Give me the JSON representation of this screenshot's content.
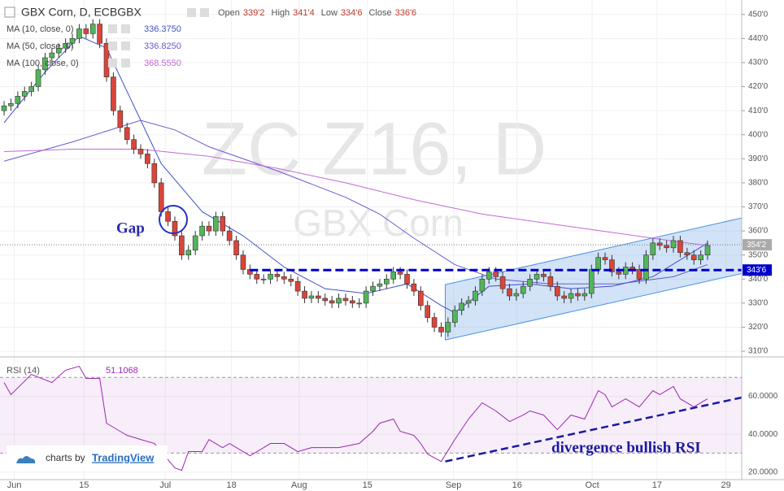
{
  "chart_data": {
    "type": "candlestick",
    "title": "GBX Corn, D, ECBGBX",
    "header": [
      {
        "label": "Open",
        "value": "339'2"
      },
      {
        "label": "High",
        "value": "341'4"
      },
      {
        "label": "Low",
        "value": "334'6"
      },
      {
        "label": "Close",
        "value": "336'6"
      }
    ],
    "watermark": [
      "ZC Z16, D",
      "GBX Corn"
    ],
    "up_color": "#53b55a",
    "down_color": "#d9453b",
    "xlim": [
      -0.6,
      108
    ],
    "ylim": [
      308,
      456
    ],
    "yticks": [
      {
        "value": 310,
        "label": "310'0"
      },
      {
        "value": 320,
        "label": "320'0"
      },
      {
        "value": 330,
        "label": "330'0"
      },
      {
        "value": 340,
        "label": "340'0"
      },
      {
        "value": 350,
        "label": "350'0"
      },
      {
        "value": 360,
        "label": "360'0"
      },
      {
        "value": 370,
        "label": "370'0"
      },
      {
        "value": 380,
        "label": "380'0"
      },
      {
        "value": 390,
        "label": "390'0"
      },
      {
        "value": 400,
        "label": "400'0"
      },
      {
        "value": 410,
        "label": "410'0"
      },
      {
        "value": 420,
        "label": "420'0"
      },
      {
        "value": 430,
        "label": "430'0"
      },
      {
        "value": 440,
        "label": "440'0"
      },
      {
        "value": 450,
        "label": "450'0"
      }
    ],
    "xticks": [
      {
        "value": 1.5,
        "label": "Jun"
      },
      {
        "value": 11.7,
        "label": "15"
      },
      {
        "value": 23.6,
        "label": "Jul"
      },
      {
        "value": 33.3,
        "label": "18"
      },
      {
        "value": 43.2,
        "label": "Aug"
      },
      {
        "value": 53.2,
        "label": "15"
      },
      {
        "value": 65.8,
        "label": "Sep"
      },
      {
        "value": 75.1,
        "label": "16"
      },
      {
        "value": 86.1,
        "label": "Oct"
      },
      {
        "value": 95.6,
        "label": "17"
      },
      {
        "value": 105.7,
        "label": "29"
      }
    ],
    "ohlc": [
      [
        410,
        414,
        408,
        412
      ],
      [
        412,
        415,
        410,
        413
      ],
      [
        413,
        418,
        411,
        416
      ],
      [
        416,
        420,
        414,
        418
      ],
      [
        418,
        422,
        416,
        420
      ],
      [
        420,
        429,
        418,
        427
      ],
      [
        427,
        434,
        425,
        432
      ],
      [
        432,
        436,
        430,
        434
      ],
      [
        434,
        438,
        432,
        436
      ],
      [
        436,
        440,
        434,
        438
      ],
      [
        438,
        442,
        436,
        440
      ],
      [
        440,
        446,
        438,
        444
      ],
      [
        444,
        446,
        440,
        442
      ],
      [
        442,
        448,
        440,
        446
      ],
      [
        446,
        448,
        436,
        438
      ],
      [
        438,
        440,
        422,
        424
      ],
      [
        424,
        426,
        408,
        410
      ],
      [
        410,
        412,
        401,
        403
      ],
      [
        403,
        405,
        396,
        398
      ],
      [
        398,
        400,
        392,
        394
      ],
      [
        394,
        396,
        390,
        392
      ],
      [
        392,
        394,
        386,
        388
      ],
      [
        388,
        390,
        378,
        380
      ],
      [
        380,
        382,
        366,
        368
      ],
      [
        368,
        370,
        362,
        364
      ],
      [
        364,
        366,
        356,
        358
      ],
      [
        358,
        360,
        348,
        350
      ],
      [
        350,
        354,
        348,
        352
      ],
      [
        352,
        360,
        350,
        358
      ],
      [
        358,
        364,
        356,
        362
      ],
      [
        362,
        364,
        358,
        360
      ],
      [
        360,
        368,
        358,
        366
      ],
      [
        366,
        368,
        358,
        360
      ],
      [
        360,
        362,
        354,
        356
      ],
      [
        356,
        358,
        348,
        350
      ],
      [
        350,
        352,
        342,
        344
      ],
      [
        344,
        346,
        340,
        342
      ],
      [
        342,
        344,
        338,
        340
      ],
      [
        340,
        342,
        338,
        340
      ],
      [
        340,
        344,
        338,
        342
      ],
      [
        342,
        344,
        339,
        341
      ],
      [
        341,
        343,
        338,
        340
      ],
      [
        340,
        342,
        337,
        339
      ],
      [
        339,
        341,
        333,
        335
      ],
      [
        335,
        337,
        330,
        332
      ],
      [
        332,
        335,
        330,
        333
      ],
      [
        333,
        335,
        330,
        332
      ],
      [
        332,
        334,
        329,
        331
      ],
      [
        331,
        333,
        328,
        330
      ],
      [
        330,
        334,
        328,
        332
      ],
      [
        332,
        334,
        329,
        331
      ],
      [
        331,
        333,
        328,
        330
      ],
      [
        330,
        332,
        328,
        330
      ],
      [
        330,
        337,
        328,
        335
      ],
      [
        335,
        339,
        333,
        337
      ],
      [
        337,
        340,
        335,
        338
      ],
      [
        338,
        342,
        336,
        340
      ],
      [
        340,
        345,
        338,
        343
      ],
      [
        343,
        345,
        340,
        342
      ],
      [
        342,
        344,
        336,
        338
      ],
      [
        338,
        340,
        333,
        335
      ],
      [
        335,
        337,
        327,
        329
      ],
      [
        329,
        331,
        322,
        324
      ],
      [
        324,
        326,
        318,
        320
      ],
      [
        320,
        322,
        316,
        318
      ],
      [
        318,
        324,
        316,
        322
      ],
      [
        322,
        329,
        320,
        327
      ],
      [
        327,
        332,
        325,
        330
      ],
      [
        330,
        333,
        328,
        331
      ],
      [
        331,
        337,
        329,
        335
      ],
      [
        335,
        342,
        333,
        340
      ],
      [
        340,
        345,
        338,
        343
      ],
      [
        343,
        345,
        339,
        341
      ],
      [
        341,
        343,
        334,
        336
      ],
      [
        336,
        338,
        331,
        333
      ],
      [
        333,
        336,
        331,
        334
      ],
      [
        334,
        339,
        332,
        337
      ],
      [
        337,
        342,
        335,
        340
      ],
      [
        340,
        344,
        338,
        342
      ],
      [
        342,
        344,
        339,
        341
      ],
      [
        341,
        343,
        335,
        337
      ],
      [
        337,
        339,
        331,
        333
      ],
      [
        333,
        335,
        330,
        332
      ],
      [
        332,
        336,
        330,
        334
      ],
      [
        334,
        336,
        331,
        333
      ],
      [
        333,
        336,
        331,
        334
      ],
      [
        334,
        346,
        332,
        344
      ],
      [
        344,
        351,
        342,
        349
      ],
      [
        349,
        351,
        346,
        348
      ],
      [
        348,
        350,
        341,
        343
      ],
      [
        343,
        345,
        340,
        342
      ],
      [
        342,
        347,
        340,
        345
      ],
      [
        345,
        347,
        342,
        344
      ],
      [
        344,
        346,
        338,
        340
      ],
      [
        340,
        352,
        338,
        350
      ],
      [
        350,
        357,
        348,
        355
      ],
      [
        355,
        357,
        352,
        354
      ],
      [
        354,
        356,
        351,
        353
      ],
      [
        353,
        358,
        351,
        356
      ],
      [
        356,
        358,
        349,
        351
      ],
      [
        351,
        353,
        348,
        350
      ],
      [
        350,
        352,
        346,
        348
      ],
      [
        348,
        352,
        346,
        350
      ],
      [
        350,
        356,
        348,
        354
      ]
    ],
    "series": [
      {
        "name": "MA (10, close, 0)",
        "value_label": "336.3750",
        "color": "#3f51c8",
        "x": [
          0,
          6,
          11,
          15,
          23,
          29,
          35,
          41,
          47,
          53,
          59,
          64,
          66,
          71,
          77,
          83,
          89,
          95,
          103
        ],
        "values": [
          405,
          426,
          441,
          436,
          388,
          368,
          358,
          345,
          336,
          334,
          338,
          329,
          326,
          337,
          338,
          336,
          337,
          341,
          355
        ]
      },
      {
        "name": "MA (50, close, 0)",
        "value_label": "336.8250",
        "color": "#6a5acd",
        "x": [
          0,
          10,
          20,
          25,
          30,
          40,
          50,
          55,
          60,
          66,
          72,
          80,
          90,
          98,
          103
        ],
        "values": [
          389,
          397,
          406,
          402,
          395,
          385,
          374,
          367,
          357,
          346,
          340,
          338,
          338,
          341,
          346
        ]
      },
      {
        "name": "MA (100, close, 0)",
        "value_label": "368.5550",
        "color": "#c06ad8",
        "x": [
          0,
          10,
          20,
          30,
          40,
          50,
          60,
          70,
          80,
          90,
          100,
          103
        ],
        "values": [
          393,
          394,
          394,
          391,
          386,
          380,
          373,
          367,
          363,
          359,
          355,
          354
        ]
      }
    ],
    "last_price": {
      "value": 354.25,
      "label": "354'2"
    },
    "support": {
      "value": 343.75,
      "label": "343'6",
      "x_start": 36,
      "color": "#0000cc"
    },
    "channel": {
      "x": [
        64.6,
        111.3
      ],
      "upper": [
        337.7,
        367.5
      ],
      "lower": [
        314.7,
        344.4
      ],
      "color": "#4a90e2"
    },
    "annotations": {
      "gap": "Gap",
      "divergence": "divergence bullish RSI"
    },
    "rsi": {
      "name": "RSI (14)",
      "value_label": "51.1068",
      "color": "#9c27b0",
      "ylim": [
        16,
        80
      ],
      "band": [
        30,
        70
      ],
      "yticks": [
        {
          "value": 20,
          "label": "20.0000"
        },
        {
          "value": 40,
          "label": "40.0000"
        },
        {
          "value": 60,
          "label": "60.0000"
        }
      ],
      "x": [
        0,
        1,
        4,
        7,
        9,
        11,
        12,
        14,
        15,
        17,
        18,
        20,
        22,
        24,
        25,
        26,
        27,
        29,
        30,
        32,
        33,
        35,
        36,
        38,
        39,
        41,
        43,
        45,
        47,
        49,
        52,
        54,
        55,
        57,
        58,
        60,
        61,
        62,
        64,
        66,
        68,
        70,
        72,
        74,
        76,
        77,
        79,
        81,
        83,
        85,
        87,
        88,
        89,
        91,
        93,
        95,
        96,
        98,
        99,
        101,
        102,
        103
      ],
      "values": [
        67.3,
        60.9,
        71.6,
        67.3,
        73.8,
        75.9,
        69.5,
        69.5,
        45.8,
        41.5,
        39.4,
        37.2,
        35.1,
        26.5,
        22.2,
        20.9,
        30.8,
        30.8,
        37.2,
        32.9,
        35.1,
        30.8,
        28.6,
        32.9,
        35.1,
        35.1,
        30.8,
        32.9,
        32.9,
        32.9,
        35.1,
        41.5,
        45.8,
        48,
        41.5,
        39.4,
        35.1,
        29.5,
        25.6,
        37.2,
        48,
        56.6,
        52.3,
        46.7,
        50.1,
        52.3,
        50.1,
        42.4,
        50.1,
        48,
        63,
        60.9,
        54.4,
        58.7,
        54.4,
        63,
        60.9,
        65.2,
        58.7,
        54.4,
        56.6,
        58.7
      ],
      "trend": {
        "x": [
          64.6,
          108.3
        ],
        "values": [
          25.6,
          59.6
        ]
      }
    },
    "branding": [
      "charts by",
      "TradingView"
    ]
  }
}
